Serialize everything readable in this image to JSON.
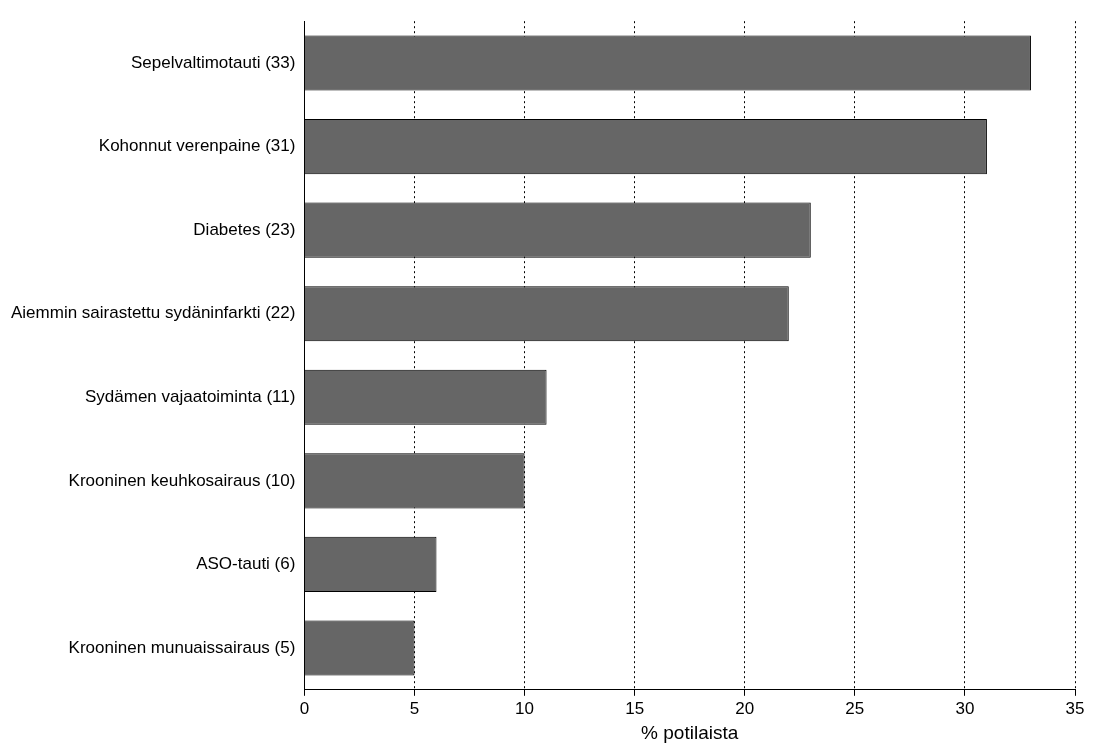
{
  "chart_data": {
    "type": "bar",
    "orientation": "horizontal",
    "xlabel": "% potilaista",
    "categories": [
      "Sepelvaltimotauti (33)",
      "Kohonnut verenpaine (31)",
      "Diabetes (23)",
      "Aiemmin sairastettu sydäninfarkti (22)",
      "Sydämen vajaatoiminta (11)",
      "Krooninen keuhkosairaus (10)",
      "ASO-tauti (6)",
      "Krooninen munuaissairaus (5)"
    ],
    "values": [
      33,
      31,
      23,
      22,
      11,
      10,
      6,
      5
    ],
    "color": "#666666",
    "xlim": [
      0,
      35
    ],
    "xticks": [
      0,
      5,
      10,
      15,
      20,
      25,
      30,
      35
    ],
    "grid": "x",
    "line_style": "dotted",
    "legend": false
  }
}
